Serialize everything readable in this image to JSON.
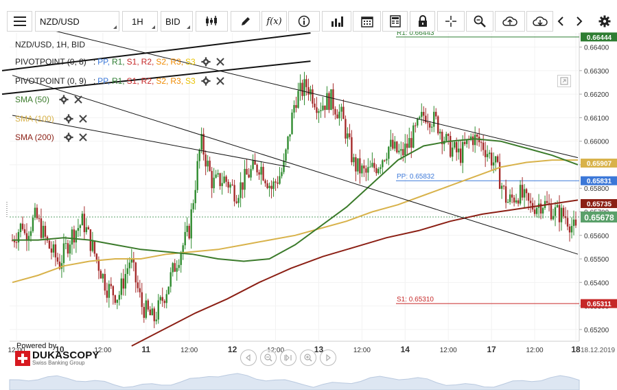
{
  "toolbar": {
    "menu_icon": "hamburger-icon",
    "instrument": "NZD/USD",
    "period": "1H",
    "side": "BID",
    "buttons": [
      "candles-icon",
      "pencil-icon",
      "fx-icon",
      "info-icon",
      "bar-chart-icon",
      "calendar-icon",
      "document-icon",
      "lock-icon",
      "crosshair-icon",
      "zoom-icon",
      "cloud-upload-icon",
      "cloud-download-icon",
      "chevron-left-icon",
      "chevron-right-icon",
      "gear-icon"
    ],
    "fx_label": "f(x)"
  },
  "legend": {
    "title": "NZD/USD, 1H, BID",
    "pivot1": {
      "name": "PIVOTPOINT (0, 8)",
      "sep": ":",
      "parts": [
        "PP,",
        "R1,",
        "S1,",
        "R2,",
        "S2,",
        "R3,",
        "S3"
      ]
    },
    "pivot2": {
      "name": "PIVOTPOINT (0, 9)",
      "sep": ":",
      "parts": [
        "PP,",
        "R1,",
        "S1,",
        "R2,",
        "S2,",
        "R3,",
        "S3"
      ]
    },
    "sma50": "SMA (50)",
    "sma100": "SMA (100)",
    "sma200": "SMA (200)"
  },
  "colors": {
    "up": "#2e8b2e",
    "down": "#a52a2a",
    "sma50": "#3a7a2a",
    "sma100": "#d8b24a",
    "sma200": "#8b1f14",
    "pp": "#3c78d8",
    "r1": "#2e7d32",
    "s1": "#c62828",
    "r2": "#c62828",
    "s2": "#ef8a00",
    "r3": "#ef8a00",
    "s3": "#e8c200",
    "current": "#5aa06a"
  },
  "chart_data": {
    "type": "candlestick",
    "instrument": "NZD/USD",
    "timeframe": "1H",
    "y_range": [
      0.6515,
      0.6646
    ],
    "y_ticks": [
      "0.66400",
      "0.66300",
      "0.66200",
      "0.66100",
      "0.66000",
      "0.65900",
      "0.65800",
      "0.65700",
      "0.65600",
      "0.65500",
      "0.65400",
      "0.65300",
      "0.65200"
    ],
    "x_ticks": [
      "12:00",
      "10",
      "12:00",
      "11",
      "12:00",
      "12",
      "12:00",
      "13",
      "12:00",
      "14",
      "12:00",
      "17",
      "12:00",
      "18"
    ],
    "x_date_label": "18.12.2019",
    "levels": [
      {
        "name": "R1",
        "label": "R1: 0.66443",
        "value": 0.66443,
        "tag": "0.66444",
        "color": "#2e7d32"
      },
      {
        "name": "PP",
        "label": "PP: 0.65832",
        "value": 0.65832,
        "tag": "0.65831",
        "color": "#3c78d8"
      },
      {
        "name": "S1",
        "label": "S1: 0.65310",
        "value": 0.6531,
        "tag": "0.65311",
        "color": "#c62828"
      }
    ],
    "price_tags": [
      {
        "series": "SMA (100)",
        "value": 0.65907,
        "tag": "0.65907"
      },
      {
        "series": "SMA (200)",
        "value": 0.65735,
        "tag": "0.65735"
      },
      {
        "series": "current",
        "value": 0.65678,
        "tag": "0.65678"
      }
    ],
    "anchors": [
      [
        0.6558,
        0.6566
      ],
      [
        0.656,
        0.6568
      ],
      [
        0.6568,
        0.6556
      ],
      [
        0.6556,
        0.6548
      ],
      [
        0.6548,
        0.656
      ],
      [
        0.656,
        0.6566
      ],
      [
        0.6566,
        0.6552
      ],
      [
        0.6552,
        0.6538
      ],
      [
        0.6538,
        0.6534
      ],
      [
        0.6534,
        0.655
      ],
      [
        0.655,
        0.653
      ],
      [
        0.653,
        0.6524
      ],
      [
        0.6524,
        0.6536
      ],
      [
        0.6536,
        0.655
      ],
      [
        0.655,
        0.6562
      ],
      [
        0.6562,
        0.66
      ],
      [
        0.66,
        0.6582
      ],
      [
        0.6582,
        0.6584
      ],
      [
        0.6584,
        0.6578
      ],
      [
        0.6578,
        0.6586
      ],
      [
        0.6586,
        0.659
      ],
      [
        0.659,
        0.658
      ],
      [
        0.658,
        0.6588
      ],
      [
        0.6588,
        0.6618
      ],
      [
        0.6618,
        0.6624
      ],
      [
        0.6624,
        0.6615
      ],
      [
        0.6615,
        0.6618
      ],
      [
        0.6618,
        0.661
      ],
      [
        0.661,
        0.659
      ],
      [
        0.659,
        0.6586
      ],
      [
        0.6586,
        0.659
      ],
      [
        0.659,
        0.6598
      ],
      [
        0.6598,
        0.6594
      ],
      [
        0.6594,
        0.6602
      ],
      [
        0.6602,
        0.6612
      ],
      [
        0.6612,
        0.6608
      ],
      [
        0.6608,
        0.6598
      ],
      [
        0.6598,
        0.6594
      ],
      [
        0.6594,
        0.6602
      ],
      [
        0.6602,
        0.6598
      ],
      [
        0.6598,
        0.659
      ],
      [
        0.659,
        0.6574
      ],
      [
        0.6574,
        0.6578
      ],
      [
        0.6578,
        0.6572
      ],
      [
        0.6572,
        0.6574
      ],
      [
        0.6574,
        0.657
      ],
      [
        0.657,
        0.6568
      ],
      [
        0.6568,
        0.656
      ]
    ],
    "sma50": [
      0.6558,
      0.6558,
      0.6559,
      0.6558,
      0.6556,
      0.6554,
      0.6553,
      0.6552,
      0.655,
      0.6549,
      0.655,
      0.6556,
      0.6564,
      0.6572,
      0.6582,
      0.6592,
      0.6598,
      0.66,
      0.6601,
      0.66,
      0.6597,
      0.6594,
      0.659
    ],
    "sma100": [
      0.654,
      0.6543,
      0.6547,
      0.6549,
      0.655,
      0.655,
      0.6552,
      0.6553,
      0.6554,
      0.6556,
      0.6558,
      0.656,
      0.6563,
      0.6566,
      0.657,
      0.6573,
      0.6577,
      0.6581,
      0.6585,
      0.6589,
      0.6591,
      0.6592,
      0.6592
    ],
    "sma200": [
      0.6513,
      0.652,
      0.6527,
      0.6533,
      0.654,
      0.6546,
      0.6551,
      0.6555,
      0.6559,
      0.6562,
      0.6566,
      0.6569,
      0.6571,
      0.6573,
      0.6575
    ],
    "trendlines": [
      {
        "name": "channel-upper",
        "from": {
          "bar": 20,
          "price": 0.6647
        },
        "to": {
          "bar": 275,
          "price": 0.6593
        }
      },
      {
        "name": "channel-lower",
        "from": {
          "bar": 0,
          "price": 0.6628
        },
        "to": {
          "bar": 275,
          "price": 0.6552
        }
      },
      {
        "name": "pivot-line-1",
        "from": {
          "bar": -5,
          "price": 0.663
        },
        "to": {
          "bar": 145,
          "price": 0.6646
        }
      },
      {
        "name": "pivot-line-2",
        "from": {
          "bar": -5,
          "price": 0.662
        },
        "to": {
          "bar": 145,
          "price": 0.6634
        }
      },
      {
        "name": "inner-line",
        "from": {
          "bar": 0,
          "price": 0.6611
        },
        "to": {
          "bar": 135,
          "price": 0.6589
        }
      }
    ]
  },
  "branding": {
    "powered_by": "Powered by",
    "logo_text": "DUKASCOPY",
    "logo_sub": "Swiss Banking Group"
  },
  "nav": [
    "chevron-left-icon",
    "zoom-out-icon",
    "pause-icon",
    "zoom-in-icon",
    "chevron-right-icon"
  ],
  "expand_icon": "expand-icon"
}
